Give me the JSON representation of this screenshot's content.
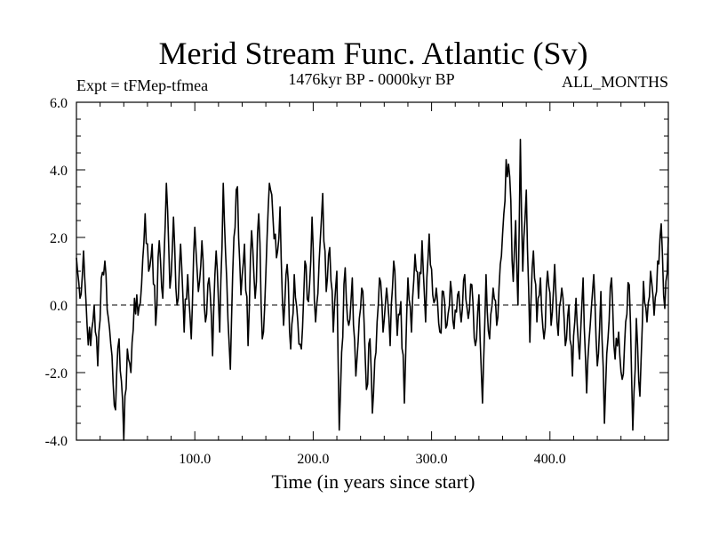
{
  "chart_data": {
    "type": "line",
    "title": "Merid Stream Func. Atlantic (Sv)",
    "subtitle_left": "Expt = tFMep-tfmea",
    "subtitle_center": "1476kyr BP - 0000kyr BP",
    "subtitle_right": "ALL_MONTHS",
    "xlabel": "Time (in years since start)",
    "ylabel": "",
    "xlim": [
      0,
      500
    ],
    "ylim": [
      -4,
      6
    ],
    "x_ticks": [
      100,
      200,
      300,
      400
    ],
    "x_tick_labels": [
      "100.0",
      "200.0",
      "300.0",
      "400.0"
    ],
    "y_ticks": [
      6,
      4,
      2,
      0,
      -2,
      -4
    ],
    "y_tick_labels": [
      "6.0",
      "4.0",
      "2.0",
      "0.0",
      "-2.0",
      "-4.0"
    ],
    "zero_line": 0,
    "anchors": [
      [
        0,
        1.4
      ],
      [
        3,
        0.2
      ],
      [
        6,
        1.6
      ],
      [
        9,
        -0.6
      ],
      [
        12,
        -1.2
      ],
      [
        15,
        0.0
      ],
      [
        18,
        -1.8
      ],
      [
        21,
        0.8
      ],
      [
        24,
        1.3
      ],
      [
        27,
        -0.4
      ],
      [
        30,
        -1.5
      ],
      [
        33,
        -3.1
      ],
      [
        36,
        -1.0
      ],
      [
        39,
        -2.8
      ],
      [
        40,
        -4.0
      ],
      [
        43,
        -1.3
      ],
      [
        46,
        -2.0
      ],
      [
        49,
        0.2
      ],
      [
        52,
        -0.3
      ],
      [
        55,
        0.6
      ],
      [
        58,
        2.7
      ],
      [
        61,
        1.0
      ],
      [
        64,
        1.8
      ],
      [
        67,
        -0.6
      ],
      [
        70,
        1.9
      ],
      [
        73,
        0.2
      ],
      [
        76,
        3.6
      ],
      [
        79,
        0.5
      ],
      [
        82,
        2.6
      ],
      [
        85,
        0.0
      ],
      [
        88,
        1.8
      ],
      [
        91,
        -0.8
      ],
      [
        94,
        0.9
      ],
      [
        97,
        -1.0
      ],
      [
        100,
        2.3
      ],
      [
        103,
        0.4
      ],
      [
        106,
        1.9
      ],
      [
        109,
        -0.5
      ],
      [
        112,
        0.8
      ],
      [
        115,
        -1.5
      ],
      [
        118,
        1.6
      ],
      [
        121,
        -0.8
      ],
      [
        124,
        3.6
      ],
      [
        127,
        0.7
      ],
      [
        130,
        -1.9
      ],
      [
        133,
        2.0
      ],
      [
        136,
        3.5
      ],
      [
        139,
        0.3
      ],
      [
        142,
        1.8
      ],
      [
        145,
        -1.2
      ],
      [
        148,
        2.2
      ],
      [
        151,
        0.2
      ],
      [
        154,
        2.7
      ],
      [
        157,
        -1.0
      ],
      [
        160,
        0.9
      ],
      [
        163,
        3.6
      ],
      [
        166,
        2.6
      ],
      [
        169,
        1.4
      ],
      [
        172,
        2.9
      ],
      [
        175,
        -0.6
      ],
      [
        178,
        1.2
      ],
      [
        181,
        -1.3
      ],
      [
        184,
        0.9
      ],
      [
        187,
        -0.5
      ],
      [
        190,
        -1.3
      ],
      [
        193,
        1.3
      ],
      [
        196,
        0.1
      ],
      [
        199,
        2.6
      ],
      [
        202,
        -0.5
      ],
      [
        205,
        1.3
      ],
      [
        208,
        3.3
      ],
      [
        211,
        0.4
      ],
      [
        214,
        1.7
      ],
      [
        217,
        -0.8
      ],
      [
        220,
        1.0
      ],
      [
        222,
        -3.7
      ],
      [
        224,
        -1.4
      ],
      [
        227,
        1.1
      ],
      [
        230,
        -0.6
      ],
      [
        233,
        0.8
      ],
      [
        236,
        -2.1
      ],
      [
        239,
        -0.4
      ],
      [
        242,
        0.4
      ],
      [
        245,
        -2.5
      ],
      [
        248,
        -1.0
      ],
      [
        250,
        -3.2
      ],
      [
        253,
        -1.4
      ],
      [
        256,
        0.8
      ],
      [
        259,
        -0.8
      ],
      [
        262,
        0.5
      ],
      [
        265,
        -1.2
      ],
      [
        268,
        1.3
      ],
      [
        271,
        -0.9
      ],
      [
        274,
        0.1
      ],
      [
        277,
        -2.9
      ],
      [
        280,
        0.8
      ],
      [
        283,
        -0.8
      ],
      [
        286,
        1.5
      ],
      [
        289,
        0.2
      ],
      [
        292,
        1.9
      ],
      [
        295,
        -0.5
      ],
      [
        298,
        2.1
      ],
      [
        301,
        0.3
      ],
      [
        304,
        0.5
      ],
      [
        307,
        -0.8
      ],
      [
        310,
        0.4
      ],
      [
        313,
        -0.6
      ],
      [
        316,
        0.7
      ],
      [
        319,
        -0.7
      ],
      [
        322,
        0.3
      ],
      [
        325,
        -0.5
      ],
      [
        328,
        0.9
      ],
      [
        331,
        -0.4
      ],
      [
        334,
        0.6
      ],
      [
        337,
        -1.2
      ],
      [
        340,
        0.3
      ],
      [
        343,
        -2.9
      ],
      [
        346,
        0.9
      ],
      [
        349,
        -1.0
      ],
      [
        352,
        0.5
      ],
      [
        355,
        -0.6
      ],
      [
        358,
        1.2
      ],
      [
        361,
        2.7
      ],
      [
        363,
        4.3
      ],
      [
        366,
        3.8
      ],
      [
        369,
        0.7
      ],
      [
        371,
        2.5
      ],
      [
        373,
        0.0
      ],
      [
        375,
        4.9
      ],
      [
        377,
        1.0
      ],
      [
        380,
        3.4
      ],
      [
        383,
        -1.1
      ],
      [
        386,
        1.6
      ],
      [
        389,
        -0.5
      ],
      [
        392,
        0.8
      ],
      [
        395,
        -1.0
      ],
      [
        398,
        1.0
      ],
      [
        401,
        -0.6
      ],
      [
        404,
        1.2
      ],
      [
        407,
        -0.9
      ],
      [
        410,
        0.5
      ],
      [
        413,
        -1.2
      ],
      [
        416,
        0.0
      ],
      [
        419,
        -2.1
      ],
      [
        422,
        0.2
      ],
      [
        425,
        -1.6
      ],
      [
        428,
        0.8
      ],
      [
        431,
        -2.6
      ],
      [
        434,
        -0.6
      ],
      [
        437,
        0.9
      ],
      [
        440,
        -1.8
      ],
      [
        443,
        0.4
      ],
      [
        446,
        -3.5
      ],
      [
        449,
        -1.0
      ],
      [
        452,
        0.8
      ],
      [
        455,
        -1.6
      ],
      [
        458,
        -0.8
      ],
      [
        461,
        -2.2
      ],
      [
        464,
        -0.5
      ],
      [
        467,
        0.6
      ],
      [
        470,
        -3.7
      ],
      [
        473,
        -0.4
      ],
      [
        476,
        -2.7
      ],
      [
        479,
        0.7
      ],
      [
        482,
        -0.5
      ],
      [
        485,
        1.0
      ],
      [
        488,
        -0.3
      ],
      [
        491,
        1.3
      ],
      [
        494,
        2.4
      ],
      [
        497,
        -0.1
      ],
      [
        500,
        2.0
      ]
    ]
  }
}
